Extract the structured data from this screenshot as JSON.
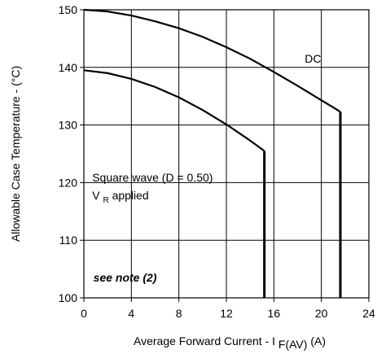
{
  "chart_data": {
    "type": "line",
    "title": "",
    "xlabel": "Average Forward Current - I",
    "xlabel_subscript": "F(AV)",
    "xlabel_unit": "(A)",
    "ylabel": "Allowable Case Temperature - (°C)",
    "xlim": [
      0,
      24
    ],
    "ylim": [
      100,
      150
    ],
    "x_ticks": [
      0,
      4,
      8,
      12,
      16,
      20,
      24
    ],
    "y_ticks": [
      100,
      110,
      120,
      130,
      140,
      150
    ],
    "x_tick_labels": [
      "0",
      "4",
      "8",
      "12",
      "16",
      "20",
      "24"
    ],
    "y_tick_labels": [
      "100",
      "110",
      "120",
      "130",
      "140",
      "150"
    ],
    "grid": true,
    "series": [
      {
        "name": "DC",
        "points": [
          [
            0,
            150
          ],
          [
            2,
            149.7
          ],
          [
            4,
            149
          ],
          [
            6,
            148
          ],
          [
            8,
            146.8
          ],
          [
            10,
            145.3
          ],
          [
            12,
            143.5
          ],
          [
            14,
            141.5
          ],
          [
            16,
            139.2
          ],
          [
            18,
            136.8
          ],
          [
            20,
            134.3
          ],
          [
            21.6,
            132.3
          ]
        ],
        "drop_to": 100
      },
      {
        "name": "Square wave (D = 0.50)",
        "points": [
          [
            0,
            139.5
          ],
          [
            2,
            139
          ],
          [
            4,
            138
          ],
          [
            6,
            136.6
          ],
          [
            8,
            134.8
          ],
          [
            10,
            132.6
          ],
          [
            12,
            130.1
          ],
          [
            14,
            127.3
          ],
          [
            15.2,
            125.5
          ]
        ],
        "drop_to": 100
      }
    ],
    "annotations": {
      "dc_label": "DC",
      "square_label": "Square wave (D = 0.50)",
      "vr_label_main": "V",
      "vr_label_sub": "R",
      "vr_label_rest": "applied",
      "note": "see note (2)"
    }
  },
  "colors": {
    "background": "#ffffff",
    "axis": "#000000",
    "grid": "#000000",
    "curve": "#000000"
  }
}
